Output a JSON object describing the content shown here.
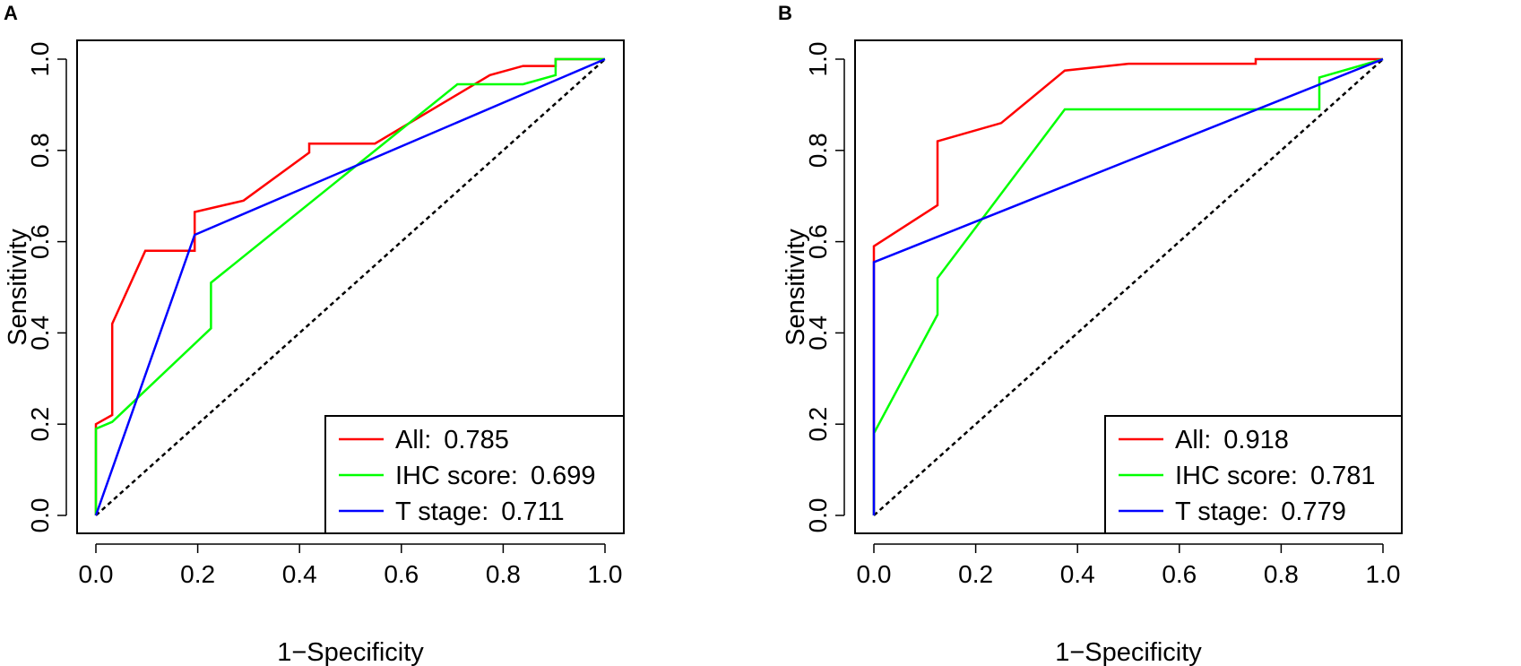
{
  "chart_data": [
    {
      "type": "line",
      "panel": "A",
      "xlabel": "1−Specificity",
      "ylabel": "Sensitivity",
      "xlim": [
        0,
        1
      ],
      "ylim": [
        0,
        1
      ],
      "x_ticks": [
        "0.0",
        "0.2",
        "0.4",
        "0.6",
        "0.8",
        "1.0"
      ],
      "y_ticks": [
        "0.0",
        "0.2",
        "0.4",
        "0.6",
        "0.8",
        "1.0"
      ],
      "legend_position": "bottom-right",
      "reference_line": {
        "style": "dashed",
        "color": "#000000",
        "from": [
          0,
          0
        ],
        "to": [
          1,
          1
        ]
      },
      "series": [
        {
          "name": "All",
          "auc": "0.785",
          "color": "#ff0000",
          "x": [
            0,
            0,
            0.032,
            0.032,
            0.097,
            0.194,
            0.194,
            0.29,
            0.419,
            0.419,
            0.548,
            0.774,
            0.839,
            0.903,
            0.903,
            1.0
          ],
          "y": [
            0,
            0.2,
            0.22,
            0.42,
            0.58,
            0.58,
            0.665,
            0.69,
            0.795,
            0.815,
            0.815,
            0.965,
            0.985,
            0.985,
            1.0,
            1.0
          ]
        },
        {
          "name": "IHC score",
          "auc": "0.699",
          "color": "#00ff00",
          "x": [
            0,
            0,
            0.032,
            0.226,
            0.226,
            0.71,
            0.839,
            0.903,
            0.903,
            1.0
          ],
          "y": [
            0,
            0.19,
            0.205,
            0.41,
            0.51,
            0.945,
            0.945,
            0.965,
            1.0,
            1.0
          ]
        },
        {
          "name": "T stage",
          "auc": "0.711",
          "color": "#0000ff",
          "x": [
            0,
            0.194,
            1.0
          ],
          "y": [
            0,
            0.615,
            1.0
          ]
        }
      ]
    },
    {
      "type": "line",
      "panel": "B",
      "xlabel": "1−Specificity",
      "ylabel": "Sensitivity",
      "xlim": [
        0,
        1
      ],
      "ylim": [
        0,
        1
      ],
      "x_ticks": [
        "0.0",
        "0.2",
        "0.4",
        "0.6",
        "0.8",
        "1.0"
      ],
      "y_ticks": [
        "0.0",
        "0.2",
        "0.4",
        "0.6",
        "0.8",
        "1.0"
      ],
      "legend_position": "bottom-right",
      "reference_line": {
        "style": "dashed",
        "color": "#000000",
        "from": [
          0,
          0
        ],
        "to": [
          1,
          1
        ]
      },
      "series": [
        {
          "name": "All",
          "auc": "0.918",
          "color": "#ff0000",
          "x": [
            0,
            0,
            0.125,
            0.125,
            0.25,
            0.375,
            0.5,
            0.75,
            0.75,
            1.0
          ],
          "y": [
            0,
            0.59,
            0.68,
            0.82,
            0.86,
            0.975,
            0.99,
            0.99,
            1.0,
            1.0
          ]
        },
        {
          "name": "IHC score",
          "auc": "0.781",
          "color": "#00ff00",
          "x": [
            0,
            0,
            0.125,
            0.125,
            0.375,
            0.875,
            0.875,
            1.0
          ],
          "y": [
            0,
            0.18,
            0.44,
            0.52,
            0.89,
            0.89,
            0.96,
            1.0
          ]
        },
        {
          "name": "T stage",
          "auc": "0.779",
          "color": "#0000ff",
          "x": [
            0,
            0,
            1.0
          ],
          "y": [
            0,
            0.555,
            1.0
          ]
        }
      ]
    }
  ]
}
